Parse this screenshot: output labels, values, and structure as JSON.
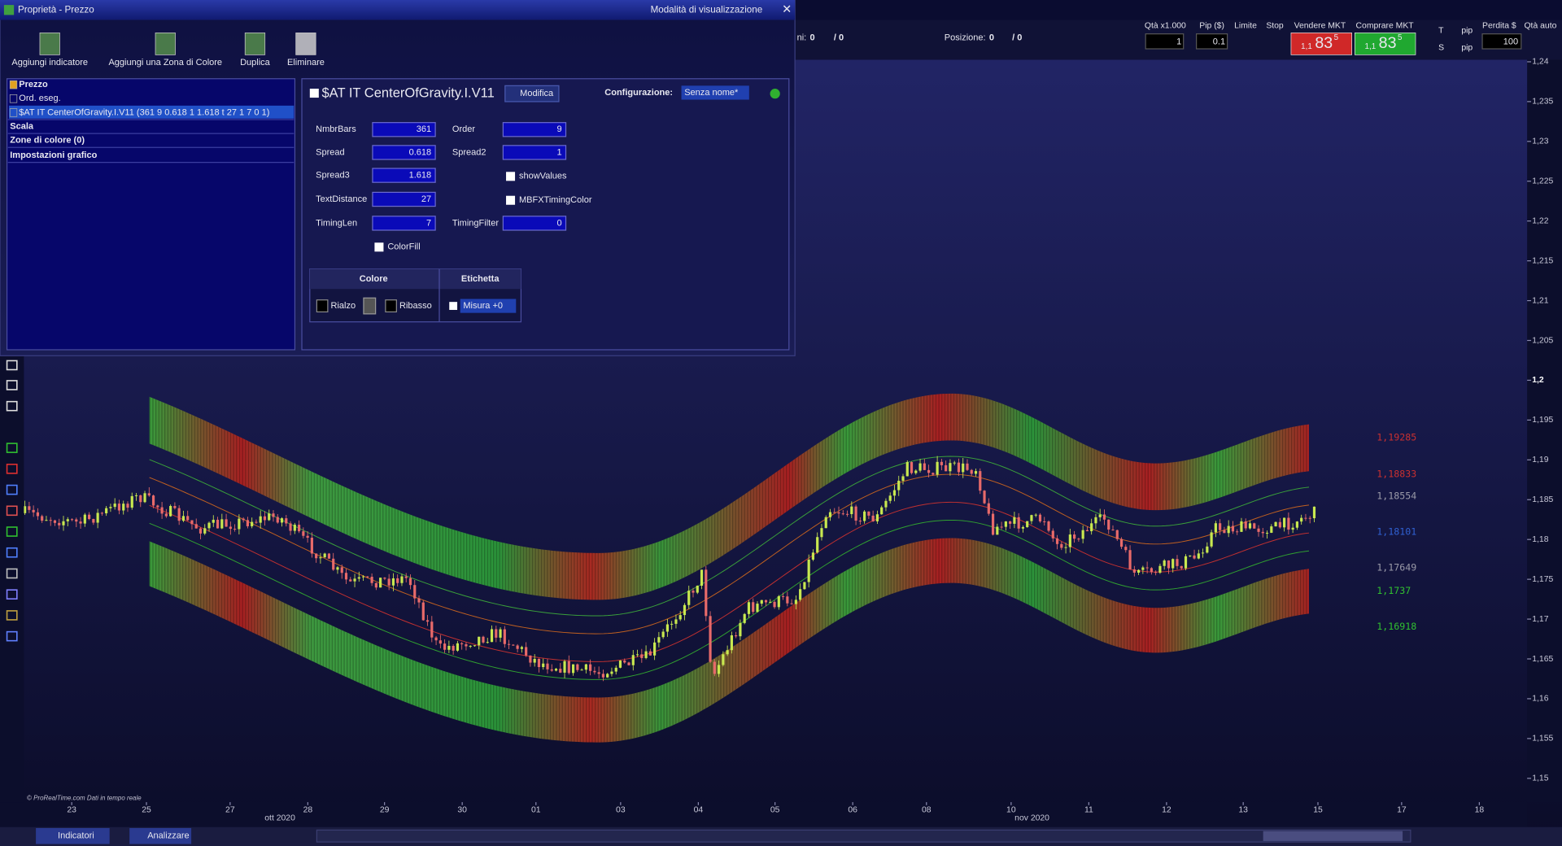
{
  "window": {
    "title": "Proprietà - Prezzo",
    "mode": "Modalità di visualizzazione"
  },
  "toolbar": [
    "Aggiungi indicatore",
    "Aggiungi una Zona di Colore",
    "Duplica",
    "Eliminare"
  ],
  "tree": [
    "Prezzo",
    "Ord. eseg.",
    "$AT IT CenterOfGravity.I.V11 (361 9 0.618 1 1.618 t 27 1 7 0 1)",
    "Scala",
    "Zone di colore (0)",
    "Impostazioni grafico"
  ],
  "panel": {
    "title": "$AT IT CenterOfGravity.I.V11",
    "edit": "Modifica",
    "config_label": "Configurazione:",
    "config_value": "Senza nome*",
    "params": [
      {
        "label": "NmbrBars",
        "value": "361"
      },
      {
        "label": "Order",
        "value": "9"
      },
      {
        "label": "Spread",
        "value": "0.618"
      },
      {
        "label": "Spread2",
        "value": "1"
      },
      {
        "label": "Spread3",
        "value": "1.618"
      },
      {
        "label": "TextDistance",
        "value": "27"
      },
      {
        "label": "TimingLen",
        "value": "7"
      },
      {
        "label": "TimingFilter",
        "value": "0"
      }
    ],
    "checks": [
      "showValues",
      "MBFXTimingColor",
      "ColorFill"
    ],
    "table": {
      "headers": [
        "Colore",
        "Etichetta"
      ],
      "rise": "Rialzo",
      "fall": "Ribasso",
      "label": "Misura +0"
    }
  },
  "trading": {
    "left_status": [
      "ni:",
      "0",
      "/ 0"
    ],
    "position": [
      "Posizione:",
      "0",
      "/ 0"
    ],
    "headers": [
      "Qtà x1.000",
      "Pip ($)",
      "Limite",
      "Stop",
      "Vendere MKT",
      "Comprare MKT",
      "Perdita $",
      "Qtà auto"
    ],
    "qty": "1",
    "pip": "0.1",
    "sell": {
      "prefix": "1,1",
      "big": "83",
      "sup": "5"
    },
    "buy": {
      "prefix": "1,1",
      "big": "83",
      "sup": "5"
    },
    "t": "T",
    "s": "S",
    "pip_unit": "pip",
    "loss": "100"
  },
  "chart": {
    "price_axis": [
      "1,24",
      "1,235",
      "1,23",
      "1,225",
      "1,22",
      "1,215",
      "1,21",
      "1,205",
      "1,2",
      "1,195",
      "1,19",
      "1,185",
      "1,18",
      "1,175",
      "1,17",
      "1,165",
      "1,16",
      "1,155",
      "1,15"
    ],
    "dates": [
      "23",
      "25",
      "27",
      "28",
      "29",
      "30",
      "01",
      "03",
      "04",
      "05",
      "06",
      "08",
      "10",
      "11",
      "12",
      "13",
      "15",
      "17",
      "18"
    ],
    "months": [
      "ott 2020",
      "nov 2020"
    ],
    "levels": [
      {
        "text": "1,19285",
        "color": "#c83030"
      },
      {
        "text": "1,18833",
        "color": "#c83030"
      },
      {
        "text": "1,18554",
        "color": "#9a9aa8"
      },
      {
        "text": "1,18101",
        "color": "#3060d0"
      },
      {
        "text": "1,17649",
        "color": "#9a9aa8"
      },
      {
        "text": "1,1737",
        "color": "#30c030"
      },
      {
        "text": "1,16918",
        "color": "#30c030"
      }
    ],
    "footer": "© ProRealTime.com Dati in tempo reale"
  },
  "taskbar": [
    "Indicatori",
    "Analizzare"
  ]
}
